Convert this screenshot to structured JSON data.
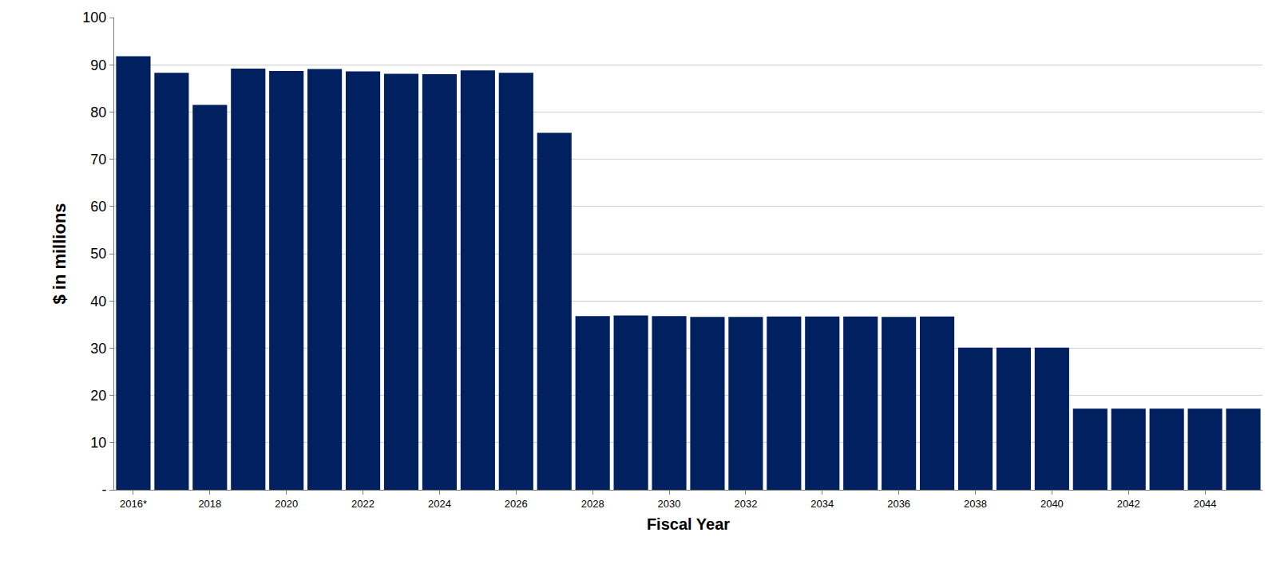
{
  "chart_data": {
    "type": "bar",
    "x_label": "Fiscal Year",
    "y_label": "$ in millions",
    "categories": [
      "2016*",
      null,
      "2018",
      null,
      "2020",
      null,
      "2022",
      null,
      "2024",
      null,
      "2026",
      null,
      "2028",
      null,
      "2030",
      null,
      "2032",
      null,
      "2034",
      null,
      "2036",
      null,
      "2038",
      null,
      "2040",
      null,
      "2042",
      null,
      "2044",
      null
    ],
    "values": [
      91.8,
      88.3,
      81.5,
      89.2,
      88.7,
      89.1,
      88.6,
      88.1,
      88.0,
      88.8,
      88.3,
      75.6,
      36.8,
      36.9,
      36.8,
      36.6,
      36.6,
      36.7,
      36.7,
      36.7,
      36.6,
      36.7,
      30.1,
      30.1,
      30.1,
      17.2,
      17.2,
      17.2,
      17.2,
      17.2
    ],
    "color": "#002060",
    "ylim": [
      0,
      100
    ],
    "yticks": [
      {
        "value": 0,
        "label": "-"
      },
      10,
      20,
      30,
      40,
      50,
      60,
      70,
      80,
      90,
      100
    ],
    "grid": true
  }
}
